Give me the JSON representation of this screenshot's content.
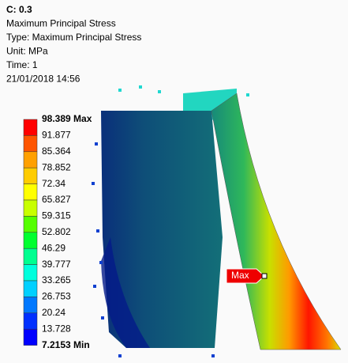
{
  "header": {
    "lines": [
      "C: 0.3",
      "Maximum Principal Stress",
      "Type: Maximum Principal Stress",
      "Unit: MPa",
      "Time: 1",
      "21/01/2018 14:56"
    ]
  },
  "legend": {
    "labels": [
      "98.389 Max",
      "91.877",
      "85.364",
      "78.852",
      "72.34",
      "65.827",
      "59.315",
      "52.802",
      "46.29",
      "39.777",
      "33.265",
      "26.753",
      "20.24",
      "13.728",
      "7.2153 Min"
    ],
    "colors": [
      "#ff0000",
      "#ff5500",
      "#ffa000",
      "#ffcc00",
      "#ffff00",
      "#c8ff00",
      "#55ff00",
      "#00ff30",
      "#00ff90",
      "#00ffdd",
      "#00d0ff",
      "#0078ff",
      "#0030ff",
      "#0000ff"
    ]
  },
  "probe": {
    "label": "Max"
  }
}
